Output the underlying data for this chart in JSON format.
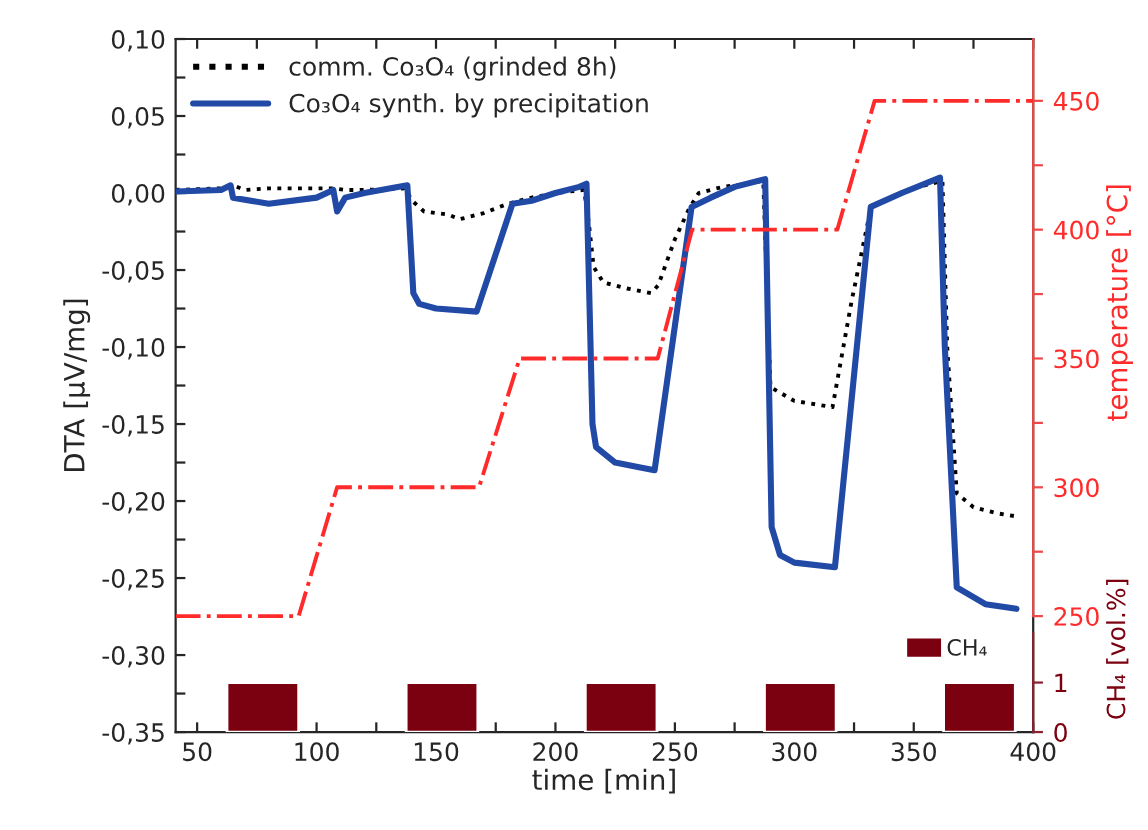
{
  "chart_data": {
    "type": "line",
    "xlabel": "time [min]",
    "ylabel": "DTA [µV/mg]",
    "y2label": "temperature [°C]",
    "y3label": "CH₄ [vol.%]",
    "xlim": [
      41,
      400
    ],
    "xticks": [
      50,
      {
        "value": 75,
        "label": null
      },
      100,
      {
        "value": 125,
        "label": null
      },
      150,
      {
        "value": 175,
        "label": null
      },
      200,
      {
        "value": 225,
        "label": null
      },
      250,
      {
        "value": 275,
        "label": null
      },
      300,
      {
        "value": 325,
        "label": null
      },
      350,
      {
        "value": 375,
        "label": null
      },
      400
    ],
    "ylim": [
      -0.35,
      0.1
    ],
    "yticks": [
      {
        "value": -0.35,
        "label": "-0,35"
      },
      {
        "value": -0.325,
        "label": null
      },
      {
        "value": -0.3,
        "label": "-0,30"
      },
      {
        "value": -0.275,
        "label": null
      },
      {
        "value": -0.25,
        "label": "-0,25"
      },
      {
        "value": -0.225,
        "label": null
      },
      {
        "value": -0.2,
        "label": "-0,20"
      },
      {
        "value": -0.175,
        "label": null
      },
      {
        "value": -0.15,
        "label": "-0,15"
      },
      {
        "value": -0.125,
        "label": null
      },
      {
        "value": -0.1,
        "label": "-0,10"
      },
      {
        "value": -0.075,
        "label": null
      },
      {
        "value": -0.05,
        "label": "-0,05"
      },
      {
        "value": -0.025,
        "label": null
      },
      {
        "value": 0,
        "label": "0,00"
      },
      {
        "value": 0.025,
        "label": null
      },
      {
        "value": 0.05,
        "label": "0,05"
      },
      {
        "value": 0.075,
        "label": null
      },
      {
        "value": 0.1,
        "label": "0,10"
      }
    ],
    "y2lim": [
      205,
      474
    ],
    "y2ticks": [
      250,
      {
        "value": 275,
        "label": null
      },
      300,
      {
        "value": 325,
        "label": null
      },
      350,
      {
        "value": 375,
        "label": null
      },
      400,
      {
        "value": 425,
        "label": null
      },
      450
    ],
    "y3lim": [
      0,
      14
    ],
    "y3ticks": [
      0,
      1
    ],
    "legend": "top left",
    "grid": false,
    "series": [
      {
        "name": "comm. Co₃O₄ (grinded 8h)",
        "line_style": "dotted",
        "color": "#000000",
        "x": [
          41,
          60,
          65,
          70,
          80,
          100,
          107,
          112,
          120,
          137,
          140,
          145,
          155,
          160,
          170,
          180,
          190,
          200,
          212,
          214,
          216,
          220,
          230,
          240,
          243,
          250,
          256,
          260,
          270,
          280,
          287,
          290,
          300,
          316,
          324,
          332,
          340,
          350,
          362,
          364,
          368,
          375,
          385,
          393
        ],
        "values": [
          0.002,
          0.003,
          0.005,
          0.002,
          0.003,
          0.003,
          0.003,
          0.002,
          0.002,
          0.003,
          -0.005,
          -0.012,
          -0.014,
          -0.017,
          -0.013,
          -0.007,
          -0.003,
          0.0,
          0.002,
          -0.02,
          -0.048,
          -0.058,
          -0.062,
          -0.065,
          -0.06,
          -0.03,
          -0.01,
          0.0,
          0.004,
          0.006,
          0.008,
          -0.126,
          -0.135,
          -0.139,
          -0.07,
          -0.01,
          null,
          0.003,
          0.008,
          -0.1,
          -0.195,
          -0.204,
          -0.208,
          -0.21
        ]
      },
      {
        "name": "Co₃O₄ synth. by precipitation",
        "line_style": "solid",
        "color": "#2149a6",
        "x": [
          41,
          60,
          64,
          65,
          80,
          100,
          107,
          108.6,
          112,
          120,
          138,
          140.5,
          143,
          150,
          167,
          182,
          190,
          200,
          210,
          213,
          215.5,
          217,
          225,
          235,
          241.5,
          257,
          265,
          275,
          287.8,
          290.5,
          294,
          300,
          317,
          332,
          345,
          361,
          363,
          368,
          380,
          393
        ],
        "values": [
          0.001,
          0.002,
          0.005,
          -0.003,
          -0.007,
          -0.003,
          0.002,
          -0.012,
          -0.003,
          0.0,
          0.005,
          -0.065,
          -0.072,
          -0.075,
          -0.077,
          -0.007,
          -0.005,
          0.0,
          0.004,
          0.006,
          -0.15,
          -0.165,
          -0.175,
          -0.178,
          -0.18,
          -0.009,
          -0.003,
          0.004,
          0.009,
          -0.217,
          -0.235,
          -0.24,
          -0.243,
          -0.009,
          0.0,
          0.01,
          -0.1,
          -0.256,
          -0.267,
          -0.27
        ]
      },
      {
        "axis": "y2",
        "line_style": "dashdot",
        "color": "#ff2a2a",
        "x": [
          41,
          92.5,
          108.6,
          168,
          185,
          242.8,
          257.2,
          318,
          333.6,
          400
        ],
        "values": [
          250,
          250,
          300,
          300,
          350,
          350,
          400,
          400,
          450,
          450
        ]
      },
      {
        "name": "CH₄",
        "type": "bar",
        "axis": "y3",
        "color": "#7b0010",
        "x": [
          77.5,
          152.5,
          227.5,
          302.5,
          377.5
        ],
        "values": [
          1,
          1,
          1,
          1,
          1
        ]
      }
    ]
  }
}
